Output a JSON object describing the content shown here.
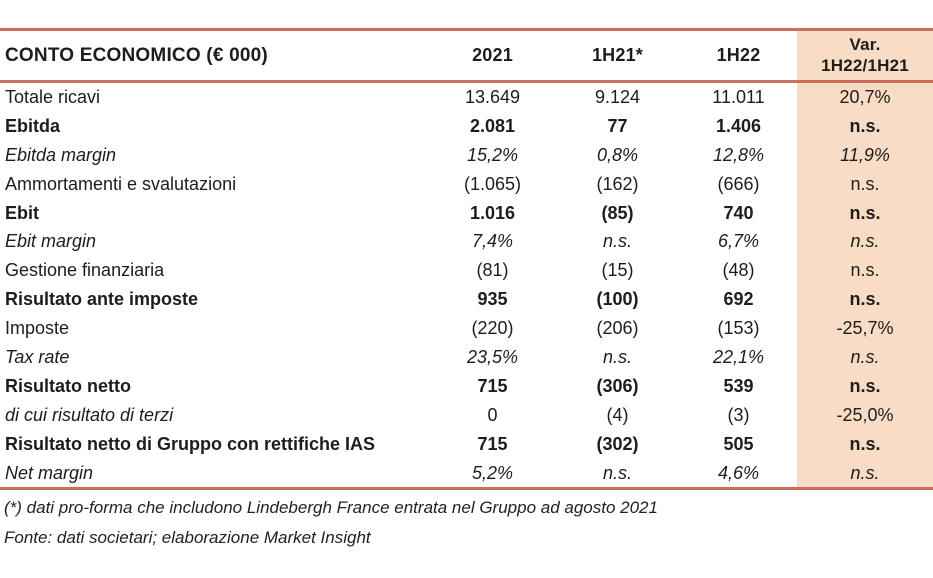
{
  "colors": {
    "accent_border": "#cb6e5a",
    "var_column_bg": "#f9dcc6",
    "text": "#1d1d1b"
  },
  "table": {
    "title": "CONTO ECONOMICO (€ 000)",
    "year_columns": [
      "2021",
      "1H21*",
      "1H22"
    ],
    "var_column": {
      "line1": "Var.",
      "line2": "1H22/1H21"
    },
    "rows": [
      {
        "label": "Totale ricavi",
        "values": [
          "13.649",
          "9.124",
          "11.011",
          "20,7%"
        ]
      },
      {
        "label": "Ebitda",
        "values": [
          "2.081",
          "77",
          "1.406",
          "n.s."
        ]
      },
      {
        "label": "Ebitda margin",
        "values": [
          "15,2%",
          "0,8%",
          "12,8%",
          "11,9%"
        ]
      },
      {
        "label": "Ammortamenti e svalutazioni",
        "values": [
          "(1.065)",
          "(162)",
          "(666)",
          "n.s."
        ]
      },
      {
        "label": "Ebit",
        "values": [
          "1.016",
          "(85)",
          "740",
          "n.s."
        ]
      },
      {
        "label": "Ebit margin",
        "values": [
          "7,4%",
          "n.s.",
          "6,7%",
          "n.s."
        ]
      },
      {
        "label": "Gestione finanziaria",
        "values": [
          "(81)",
          "(15)",
          "(48)",
          "n.s."
        ]
      },
      {
        "label": "Risultato ante imposte",
        "values": [
          "935",
          "(100)",
          "692",
          "n.s."
        ]
      },
      {
        "label": "Imposte",
        "values": [
          "(220)",
          "(206)",
          "(153)",
          "-25,7%"
        ]
      },
      {
        "label": "Tax rate",
        "values": [
          "23,5%",
          "n.s.",
          "22,1%",
          "n.s."
        ]
      },
      {
        "label": "Risultato netto",
        "values": [
          "715",
          "(306)",
          "539",
          "n.s."
        ]
      },
      {
        "label": "di cui risultato di terzi",
        "values": [
          "0",
          "(4)",
          "(3)",
          "-25,0%"
        ]
      },
      {
        "label": "Risultato netto di Gruppo con rettifiche IAS",
        "values": [
          "715",
          "(302)",
          "505",
          "n.s."
        ]
      },
      {
        "label": "Net margin",
        "values": [
          "5,2%",
          "n.s.",
          "4,6%",
          "n.s."
        ]
      }
    ]
  },
  "footnotes": [
    "(*) dati pro-forma che includono Lindebergh France entrata nel Gruppo ad agosto 2021",
    "Fonte: dati societari; elaborazione Market Insight"
  ]
}
